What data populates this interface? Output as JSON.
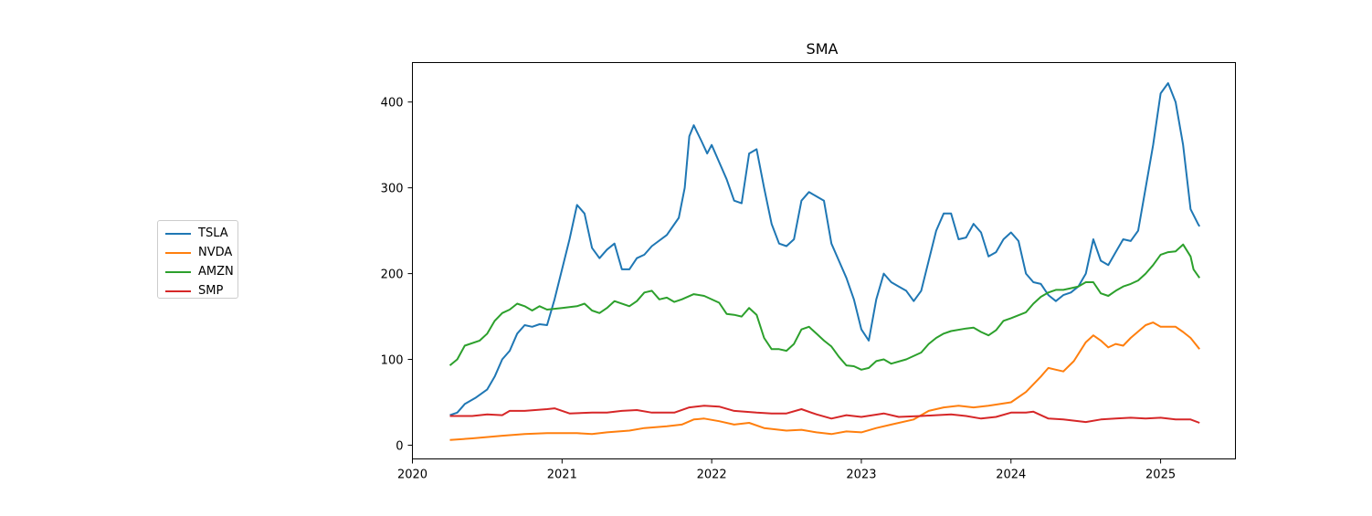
{
  "chart_data": {
    "type": "line",
    "title": "SMA",
    "xlabel": "",
    "ylabel": "",
    "legend_position": "left",
    "grid": false,
    "xlim": [
      2020.0,
      2025.5
    ],
    "ylim": [
      -16,
      446
    ],
    "xticks": [
      {
        "value": 2020,
        "label": "2020"
      },
      {
        "value": 2021,
        "label": "2021"
      },
      {
        "value": 2022,
        "label": "2022"
      },
      {
        "value": 2023,
        "label": "2023"
      },
      {
        "value": 2024,
        "label": "2024"
      },
      {
        "value": 2025,
        "label": "2025"
      }
    ],
    "yticks": [
      {
        "value": 0,
        "label": "0"
      },
      {
        "value": 100,
        "label": "100"
      },
      {
        "value": 200,
        "label": "200"
      },
      {
        "value": 300,
        "label": "300"
      },
      {
        "value": 400,
        "label": "400"
      }
    ],
    "series": [
      {
        "name": "TSLA",
        "color": "#1f77b4",
        "points": [
          [
            2020.25,
            35
          ],
          [
            2020.3,
            38
          ],
          [
            2020.35,
            48
          ],
          [
            2020.42,
            55
          ],
          [
            2020.5,
            65
          ],
          [
            2020.55,
            80
          ],
          [
            2020.6,
            100
          ],
          [
            2020.65,
            110
          ],
          [
            2020.7,
            130
          ],
          [
            2020.75,
            140
          ],
          [
            2020.8,
            138
          ],
          [
            2020.85,
            141
          ],
          [
            2020.9,
            140
          ],
          [
            2020.95,
            170
          ],
          [
            2021.0,
            205
          ],
          [
            2021.05,
            240
          ],
          [
            2021.1,
            280
          ],
          [
            2021.15,
            270
          ],
          [
            2021.2,
            230
          ],
          [
            2021.25,
            218
          ],
          [
            2021.3,
            228
          ],
          [
            2021.35,
            235
          ],
          [
            2021.4,
            205
          ],
          [
            2021.45,
            205
          ],
          [
            2021.5,
            218
          ],
          [
            2021.55,
            222
          ],
          [
            2021.6,
            232
          ],
          [
            2021.7,
            245
          ],
          [
            2021.78,
            265
          ],
          [
            2021.82,
            300
          ],
          [
            2021.85,
            360
          ],
          [
            2021.88,
            373
          ],
          [
            2021.93,
            355
          ],
          [
            2021.97,
            340
          ],
          [
            2022.0,
            350
          ],
          [
            2022.05,
            330
          ],
          [
            2022.1,
            310
          ],
          [
            2022.15,
            285
          ],
          [
            2022.2,
            282
          ],
          [
            2022.25,
            340
          ],
          [
            2022.3,
            345
          ],
          [
            2022.35,
            300
          ],
          [
            2022.4,
            258
          ],
          [
            2022.45,
            235
          ],
          [
            2022.5,
            232
          ],
          [
            2022.55,
            240
          ],
          [
            2022.6,
            285
          ],
          [
            2022.65,
            295
          ],
          [
            2022.7,
            290
          ],
          [
            2022.75,
            285
          ],
          [
            2022.8,
            235
          ],
          [
            2022.85,
            215
          ],
          [
            2022.9,
            195
          ],
          [
            2022.95,
            170
          ],
          [
            2023.0,
            135
          ],
          [
            2023.05,
            122
          ],
          [
            2023.1,
            170
          ],
          [
            2023.15,
            200
          ],
          [
            2023.2,
            190
          ],
          [
            2023.25,
            185
          ],
          [
            2023.3,
            180
          ],
          [
            2023.35,
            168
          ],
          [
            2023.4,
            180
          ],
          [
            2023.45,
            215
          ],
          [
            2023.5,
            250
          ],
          [
            2023.55,
            270
          ],
          [
            2023.6,
            270
          ],
          [
            2023.65,
            240
          ],
          [
            2023.7,
            242
          ],
          [
            2023.75,
            258
          ],
          [
            2023.8,
            248
          ],
          [
            2023.85,
            220
          ],
          [
            2023.9,
            225
          ],
          [
            2023.95,
            240
          ],
          [
            2024.0,
            248
          ],
          [
            2024.05,
            238
          ],
          [
            2024.1,
            200
          ],
          [
            2024.15,
            190
          ],
          [
            2024.2,
            188
          ],
          [
            2024.25,
            175
          ],
          [
            2024.3,
            168
          ],
          [
            2024.35,
            175
          ],
          [
            2024.4,
            178
          ],
          [
            2024.45,
            185
          ],
          [
            2024.5,
            200
          ],
          [
            2024.55,
            240
          ],
          [
            2024.6,
            215
          ],
          [
            2024.65,
            210
          ],
          [
            2024.7,
            225
          ],
          [
            2024.75,
            240
          ],
          [
            2024.8,
            238
          ],
          [
            2024.85,
            250
          ],
          [
            2024.9,
            300
          ],
          [
            2024.95,
            350
          ],
          [
            2025.0,
            410
          ],
          [
            2025.05,
            422
          ],
          [
            2025.1,
            400
          ],
          [
            2025.15,
            350
          ],
          [
            2025.2,
            275
          ],
          [
            2025.25,
            258
          ],
          [
            2025.26,
            255
          ]
        ]
      },
      {
        "name": "NVDA",
        "color": "#ff7f0e",
        "points": [
          [
            2020.25,
            6
          ],
          [
            2020.4,
            8
          ],
          [
            2020.6,
            11
          ],
          [
            2020.75,
            13
          ],
          [
            2020.9,
            14
          ],
          [
            2021.1,
            14
          ],
          [
            2021.2,
            13
          ],
          [
            2021.3,
            15
          ],
          [
            2021.45,
            17
          ],
          [
            2021.55,
            20
          ],
          [
            2021.7,
            22
          ],
          [
            2021.8,
            24
          ],
          [
            2021.88,
            30
          ],
          [
            2021.95,
            31
          ],
          [
            2022.05,
            28
          ],
          [
            2022.15,
            24
          ],
          [
            2022.25,
            26
          ],
          [
            2022.35,
            20
          ],
          [
            2022.5,
            17
          ],
          [
            2022.6,
            18
          ],
          [
            2022.7,
            15
          ],
          [
            2022.8,
            13
          ],
          [
            2022.9,
            16
          ],
          [
            2023.0,
            15
          ],
          [
            2023.1,
            20
          ],
          [
            2023.2,
            24
          ],
          [
            2023.35,
            30
          ],
          [
            2023.45,
            40
          ],
          [
            2023.55,
            44
          ],
          [
            2023.65,
            46
          ],
          [
            2023.75,
            44
          ],
          [
            2023.85,
            46
          ],
          [
            2024.0,
            50
          ],
          [
            2024.1,
            62
          ],
          [
            2024.2,
            80
          ],
          [
            2024.25,
            90
          ],
          [
            2024.3,
            88
          ],
          [
            2024.35,
            86
          ],
          [
            2024.42,
            98
          ],
          [
            2024.5,
            120
          ],
          [
            2024.55,
            128
          ],
          [
            2024.6,
            122
          ],
          [
            2024.65,
            114
          ],
          [
            2024.7,
            118
          ],
          [
            2024.75,
            116
          ],
          [
            2024.8,
            125
          ],
          [
            2024.9,
            140
          ],
          [
            2024.95,
            143
          ],
          [
            2025.0,
            138
          ],
          [
            2025.1,
            138
          ],
          [
            2025.15,
            132
          ],
          [
            2025.2,
            125
          ],
          [
            2025.26,
            112
          ]
        ]
      },
      {
        "name": "AMZN",
        "color": "#2ca02c",
        "points": [
          [
            2020.25,
            93
          ],
          [
            2020.3,
            100
          ],
          [
            2020.35,
            116
          ],
          [
            2020.45,
            122
          ],
          [
            2020.5,
            130
          ],
          [
            2020.55,
            145
          ],
          [
            2020.6,
            154
          ],
          [
            2020.65,
            158
          ],
          [
            2020.7,
            165
          ],
          [
            2020.75,
            162
          ],
          [
            2020.8,
            157
          ],
          [
            2020.85,
            162
          ],
          [
            2020.9,
            158
          ],
          [
            2021.0,
            160
          ],
          [
            2021.1,
            162
          ],
          [
            2021.15,
            165
          ],
          [
            2021.2,
            157
          ],
          [
            2021.25,
            154
          ],
          [
            2021.3,
            160
          ],
          [
            2021.35,
            168
          ],
          [
            2021.45,
            162
          ],
          [
            2021.5,
            168
          ],
          [
            2021.55,
            178
          ],
          [
            2021.6,
            180
          ],
          [
            2021.65,
            170
          ],
          [
            2021.7,
            172
          ],
          [
            2021.75,
            167
          ],
          [
            2021.8,
            170
          ],
          [
            2021.88,
            176
          ],
          [
            2021.95,
            174
          ],
          [
            2022.05,
            166
          ],
          [
            2022.1,
            153
          ],
          [
            2022.15,
            152
          ],
          [
            2022.2,
            150
          ],
          [
            2022.25,
            160
          ],
          [
            2022.3,
            152
          ],
          [
            2022.35,
            125
          ],
          [
            2022.4,
            112
          ],
          [
            2022.45,
            112
          ],
          [
            2022.5,
            110
          ],
          [
            2022.55,
            118
          ],
          [
            2022.6,
            135
          ],
          [
            2022.65,
            138
          ],
          [
            2022.7,
            130
          ],
          [
            2022.75,
            122
          ],
          [
            2022.8,
            115
          ],
          [
            2022.85,
            103
          ],
          [
            2022.9,
            93
          ],
          [
            2022.95,
            92
          ],
          [
            2023.0,
            88
          ],
          [
            2023.05,
            90
          ],
          [
            2023.1,
            98
          ],
          [
            2023.15,
            100
          ],
          [
            2023.2,
            95
          ],
          [
            2023.3,
            100
          ],
          [
            2023.4,
            108
          ],
          [
            2023.45,
            118
          ],
          [
            2023.5,
            125
          ],
          [
            2023.55,
            130
          ],
          [
            2023.6,
            133
          ],
          [
            2023.7,
            136
          ],
          [
            2023.75,
            137
          ],
          [
            2023.8,
            132
          ],
          [
            2023.85,
            128
          ],
          [
            2023.9,
            134
          ],
          [
            2023.95,
            145
          ],
          [
            2024.0,
            148
          ],
          [
            2024.1,
            155
          ],
          [
            2024.15,
            165
          ],
          [
            2024.2,
            173
          ],
          [
            2024.25,
            178
          ],
          [
            2024.3,
            181
          ],
          [
            2024.35,
            181
          ],
          [
            2024.4,
            183
          ],
          [
            2024.45,
            185
          ],
          [
            2024.5,
            190
          ],
          [
            2024.55,
            190
          ],
          [
            2024.6,
            177
          ],
          [
            2024.65,
            174
          ],
          [
            2024.7,
            180
          ],
          [
            2024.75,
            185
          ],
          [
            2024.8,
            188
          ],
          [
            2024.85,
            192
          ],
          [
            2024.9,
            200
          ],
          [
            2024.95,
            210
          ],
          [
            2025.0,
            222
          ],
          [
            2025.05,
            225
          ],
          [
            2025.1,
            226
          ],
          [
            2025.15,
            234
          ],
          [
            2025.2,
            220
          ],
          [
            2025.22,
            205
          ],
          [
            2025.26,
            195
          ]
        ]
      },
      {
        "name": "SMP",
        "color": "#d62728",
        "points": [
          [
            2020.25,
            34
          ],
          [
            2020.4,
            34
          ],
          [
            2020.5,
            36
          ],
          [
            2020.6,
            35
          ],
          [
            2020.65,
            40
          ],
          [
            2020.75,
            40
          ],
          [
            2020.9,
            42
          ],
          [
            2020.95,
            43
          ],
          [
            2021.05,
            37
          ],
          [
            2021.2,
            38
          ],
          [
            2021.3,
            38
          ],
          [
            2021.4,
            40
          ],
          [
            2021.5,
            41
          ],
          [
            2021.6,
            38
          ],
          [
            2021.75,
            38
          ],
          [
            2021.85,
            44
          ],
          [
            2021.95,
            46
          ],
          [
            2022.05,
            45
          ],
          [
            2022.15,
            40
          ],
          [
            2022.3,
            38
          ],
          [
            2022.4,
            37
          ],
          [
            2022.5,
            37
          ],
          [
            2022.6,
            42
          ],
          [
            2022.7,
            36
          ],
          [
            2022.8,
            31
          ],
          [
            2022.9,
            35
          ],
          [
            2023.0,
            33
          ],
          [
            2023.15,
            37
          ],
          [
            2023.25,
            33
          ],
          [
            2023.4,
            34
          ],
          [
            2023.5,
            35
          ],
          [
            2023.6,
            36
          ],
          [
            2023.7,
            34
          ],
          [
            2023.8,
            31
          ],
          [
            2023.9,
            33
          ],
          [
            2024.0,
            38
          ],
          [
            2024.1,
            38
          ],
          [
            2024.15,
            39
          ],
          [
            2024.25,
            31
          ],
          [
            2024.35,
            30
          ],
          [
            2024.5,
            27
          ],
          [
            2024.6,
            30
          ],
          [
            2024.7,
            31
          ],
          [
            2024.8,
            32
          ],
          [
            2024.9,
            31
          ],
          [
            2025.0,
            32
          ],
          [
            2025.1,
            30
          ],
          [
            2025.2,
            30
          ],
          [
            2025.26,
            26
          ]
        ]
      }
    ]
  }
}
